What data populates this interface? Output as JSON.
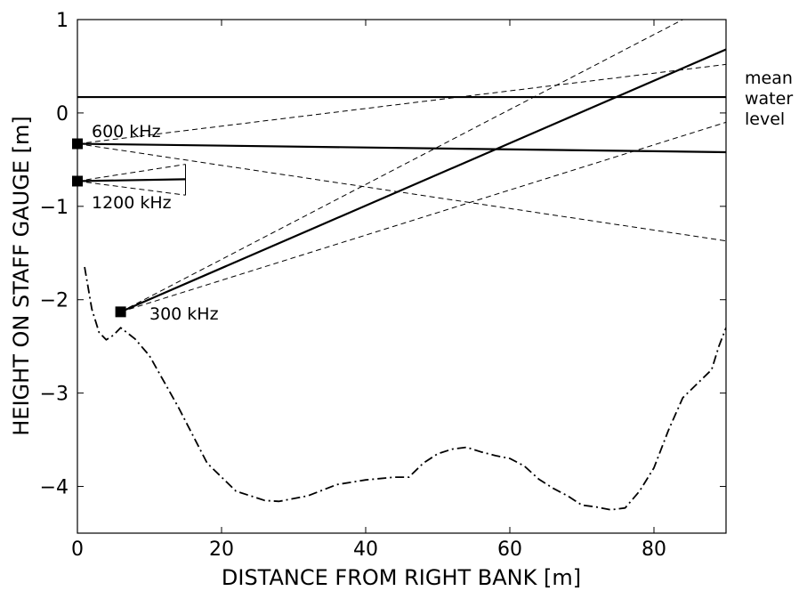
{
  "chart_data": {
    "type": "line",
    "title": "",
    "xlabel": "DISTANCE  FROM  RIGHT  BANK [m]",
    "ylabel": "HEIGHT  ON  STAFF  GAUGE  [m]",
    "xlim": [
      0,
      90
    ],
    "ylim": [
      -4.5,
      1
    ],
    "xticks": [
      0,
      20,
      40,
      60,
      80
    ],
    "yticks": [
      1,
      0,
      -1,
      -2,
      -3,
      -4
    ],
    "grid": false,
    "legend": "none",
    "water_level": {
      "y": 0.17,
      "label_lines": [
        "mean",
        "water",
        "level"
      ]
    },
    "instruments": [
      {
        "label": "600 kHz",
        "position": {
          "x": 0,
          "y": -0.33
        },
        "beam_center": [
          [
            0,
            -0.33
          ],
          [
            90,
            -0.42
          ]
        ],
        "beam_edges": [
          [
            [
              0,
              -0.33
            ],
            [
              90,
              0.52
            ]
          ],
          [
            [
              0,
              -0.33
            ],
            [
              90,
              -1.37
            ]
          ]
        ]
      },
      {
        "label": "1200 kHz",
        "position": {
          "x": 0,
          "y": -0.73
        },
        "beam_center": [
          [
            0,
            -0.73
          ],
          [
            15,
            -0.71
          ]
        ],
        "beam_edges": [
          [
            [
              0,
              -0.73
            ],
            [
              15,
              -0.55
            ]
          ],
          [
            [
              0,
              -0.73
            ],
            [
              15,
              -0.88
            ]
          ]
        ]
      },
      {
        "label": "300 kHz",
        "position": {
          "x": 6,
          "y": -2.13
        },
        "beam_center": [
          [
            6,
            -2.13
          ],
          [
            90,
            0.68
          ]
        ],
        "beam_edges": [
          [
            [
              6,
              -2.13
            ],
            [
              84,
              1.0
            ]
          ],
          [
            [
              6,
              -2.13
            ],
            [
              90,
              -0.1
            ]
          ]
        ]
      }
    ],
    "riverbed": {
      "style": "dash-dot",
      "x": [
        1,
        2,
        3,
        4,
        5,
        6,
        8,
        10,
        14,
        18,
        22,
        26,
        28,
        32,
        36,
        40,
        44,
        46,
        48,
        50,
        52,
        54,
        56,
        58,
        60,
        62,
        64,
        66,
        68,
        70,
        72,
        74,
        76,
        78,
        80,
        82,
        84,
        86,
        88,
        89,
        90
      ],
      "y": [
        -1.65,
        -2.1,
        -2.35,
        -2.43,
        -2.38,
        -2.3,
        -2.42,
        -2.6,
        -3.15,
        -3.75,
        -4.05,
        -4.15,
        -4.16,
        -4.1,
        -3.98,
        -3.93,
        -3.9,
        -3.9,
        -3.75,
        -3.65,
        -3.6,
        -3.58,
        -3.63,
        -3.67,
        -3.7,
        -3.78,
        -3.92,
        -4.02,
        -4.1,
        -4.2,
        -4.22,
        -4.25,
        -4.23,
        -4.05,
        -3.8,
        -3.4,
        -3.05,
        -2.9,
        -2.75,
        -2.5,
        -2.3
      ]
    }
  }
}
